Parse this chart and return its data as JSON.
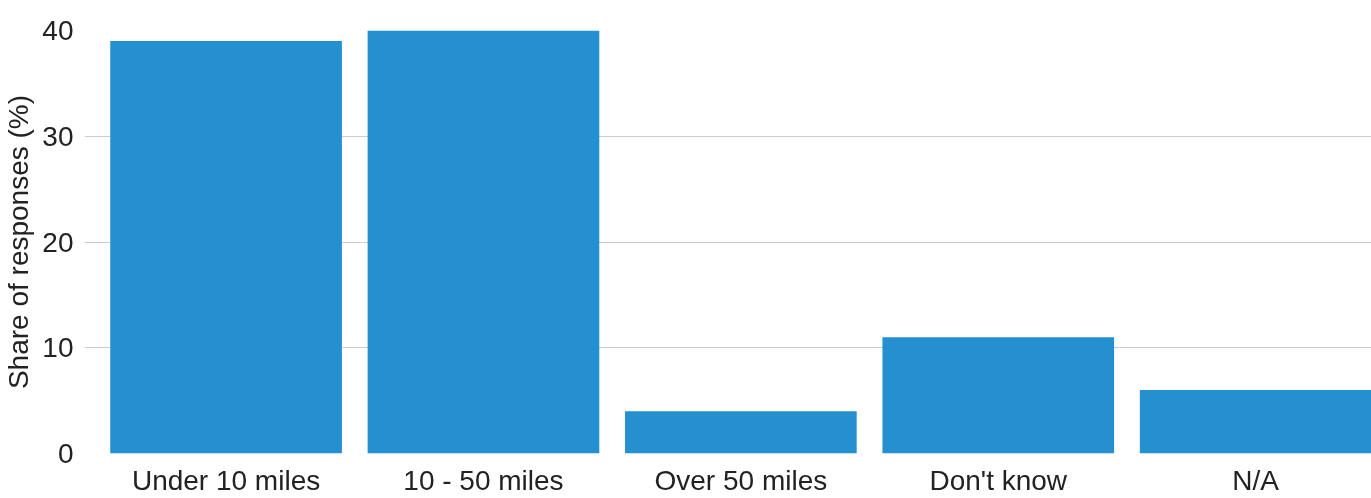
{
  "chart_data": {
    "type": "bar",
    "ylabel": "Share of responses (%)",
    "categories": [
      "Under 10 miles",
      "10 - 50 miles",
      "Over 50 miles",
      "Don't know",
      "N/A"
    ],
    "values": [
      39,
      40,
      4,
      11,
      6
    ],
    "color": "#2490d0",
    "ylim": [
      0,
      40
    ],
    "yticks": [
      0,
      10,
      20,
      30,
      40
    ],
    "grid": "y"
  }
}
